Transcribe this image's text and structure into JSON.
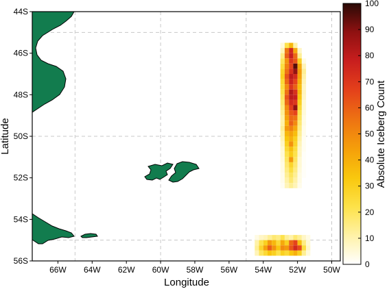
{
  "map": {
    "xlabel": "Longitude",
    "ylabel": "Latitude",
    "lon_range": [
      -67.5,
      -49.5
    ],
    "lat_range": [
      -56,
      -44
    ],
    "x_ticks": [
      {
        "value": -66,
        "label": "66W"
      },
      {
        "value": -64,
        "label": "64W"
      },
      {
        "value": -62,
        "label": "62W"
      },
      {
        "value": -60,
        "label": "60W"
      },
      {
        "value": -58,
        "label": "58W"
      },
      {
        "value": -56,
        "label": "56W"
      },
      {
        "value": -54,
        "label": "54W"
      },
      {
        "value": -52,
        "label": "52W"
      },
      {
        "value": -50,
        "label": "50W"
      }
    ],
    "y_ticks": [
      {
        "value": -44,
        "label": "44S"
      },
      {
        "value": -46,
        "label": "46S"
      },
      {
        "value": -48,
        "label": "48S"
      },
      {
        "value": -50,
        "label": "50S"
      },
      {
        "value": -52,
        "label": "52S"
      },
      {
        "value": -54,
        "label": "54S"
      },
      {
        "value": -56,
        "label": "56S"
      }
    ],
    "gridlines_lon": [
      -65,
      -60,
      -55,
      -50
    ],
    "gridlines_lat": [
      -45,
      -50,
      -55
    ],
    "land_color": "#127c4e",
    "land_features": [
      "patagonia-coast",
      "tierra-del-fuego",
      "isla-de-los-estados",
      "falkland-islands"
    ]
  },
  "colorbar": {
    "label": "Absolute Iceberg Count",
    "min": 0,
    "max": 100,
    "ticks": [
      "0",
      "10",
      "20",
      "30",
      "40",
      "50",
      "60",
      "70",
      "80",
      "90",
      "100"
    ],
    "colormap": [
      "#ffffff",
      "#fff3b0",
      "#fde24a",
      "#f9c80e",
      "#f5a00a",
      "#ee7512",
      "#e4401b",
      "#c81e1e",
      "#8f1111",
      "#2a0a06"
    ]
  },
  "chart_data": {
    "type": "heatmap",
    "cell_size_deg": 0.25,
    "grid_origin_lon": -53.0,
    "grid_origin_lat": -45.5,
    "column_strip_lon_start": -53.0,
    "column_strip_rows": [
      [
        5,
        22,
        38,
        12,
        0,
        0,
        0
      ],
      [
        10,
        55,
        75,
        42,
        8,
        0,
        0
      ],
      [
        16,
        60,
        78,
        58,
        14,
        0,
        0
      ],
      [
        20,
        48,
        70,
        62,
        30,
        4,
        0
      ],
      [
        24,
        52,
        66,
        95,
        42,
        10,
        0
      ],
      [
        28,
        56,
        72,
        88,
        46,
        14,
        0
      ],
      [
        30,
        62,
        80,
        74,
        44,
        12,
        0
      ],
      [
        26,
        58,
        76,
        66,
        40,
        10,
        0
      ],
      [
        24,
        50,
        70,
        60,
        36,
        8,
        0
      ],
      [
        22,
        56,
        82,
        72,
        38,
        9,
        0
      ],
      [
        20,
        62,
        80,
        78,
        34,
        8,
        0
      ],
      [
        18,
        58,
        74,
        70,
        30,
        6,
        0
      ],
      [
        16,
        50,
        68,
        88,
        26,
        6,
        0
      ],
      [
        14,
        48,
        62,
        66,
        22,
        5,
        0
      ],
      [
        12,
        44,
        58,
        56,
        20,
        4,
        0
      ],
      [
        12,
        40,
        60,
        50,
        18,
        4,
        0
      ],
      [
        14,
        46,
        52,
        42,
        16,
        3,
        0
      ],
      [
        12,
        38,
        44,
        36,
        14,
        3,
        0
      ],
      [
        10,
        34,
        40,
        30,
        12,
        2,
        0
      ],
      [
        8,
        30,
        48,
        28,
        10,
        2,
        0
      ],
      [
        6,
        26,
        36,
        24,
        8,
        2,
        0
      ],
      [
        6,
        22,
        32,
        22,
        8,
        1,
        0
      ],
      [
        5,
        20,
        46,
        20,
        6,
        1,
        0
      ],
      [
        4,
        18,
        28,
        18,
        6,
        1,
        0
      ],
      [
        4,
        16,
        24,
        16,
        5,
        1,
        0
      ],
      [
        3,
        14,
        20,
        14,
        4,
        1,
        0
      ],
      [
        3,
        12,
        18,
        12,
        4,
        0,
        0
      ],
      [
        2,
        10,
        14,
        10,
        3,
        0,
        0
      ]
    ],
    "bottom_strip_lon_start": -54.5,
    "bottom_strip_lat_start": -54.75,
    "bottom_strip_rows": [
      [
        4,
        8,
        10,
        14,
        18,
        16,
        22,
        14,
        12,
        18,
        14,
        8,
        4
      ],
      [
        12,
        22,
        30,
        46,
        38,
        26,
        42,
        30,
        58,
        66,
        36,
        16,
        6
      ],
      [
        14,
        28,
        44,
        60,
        48,
        34,
        50,
        46,
        62,
        74,
        64,
        24,
        8
      ],
      [
        10,
        20,
        26,
        34,
        30,
        22,
        30,
        26,
        34,
        40,
        30,
        14,
        5
      ]
    ]
  }
}
